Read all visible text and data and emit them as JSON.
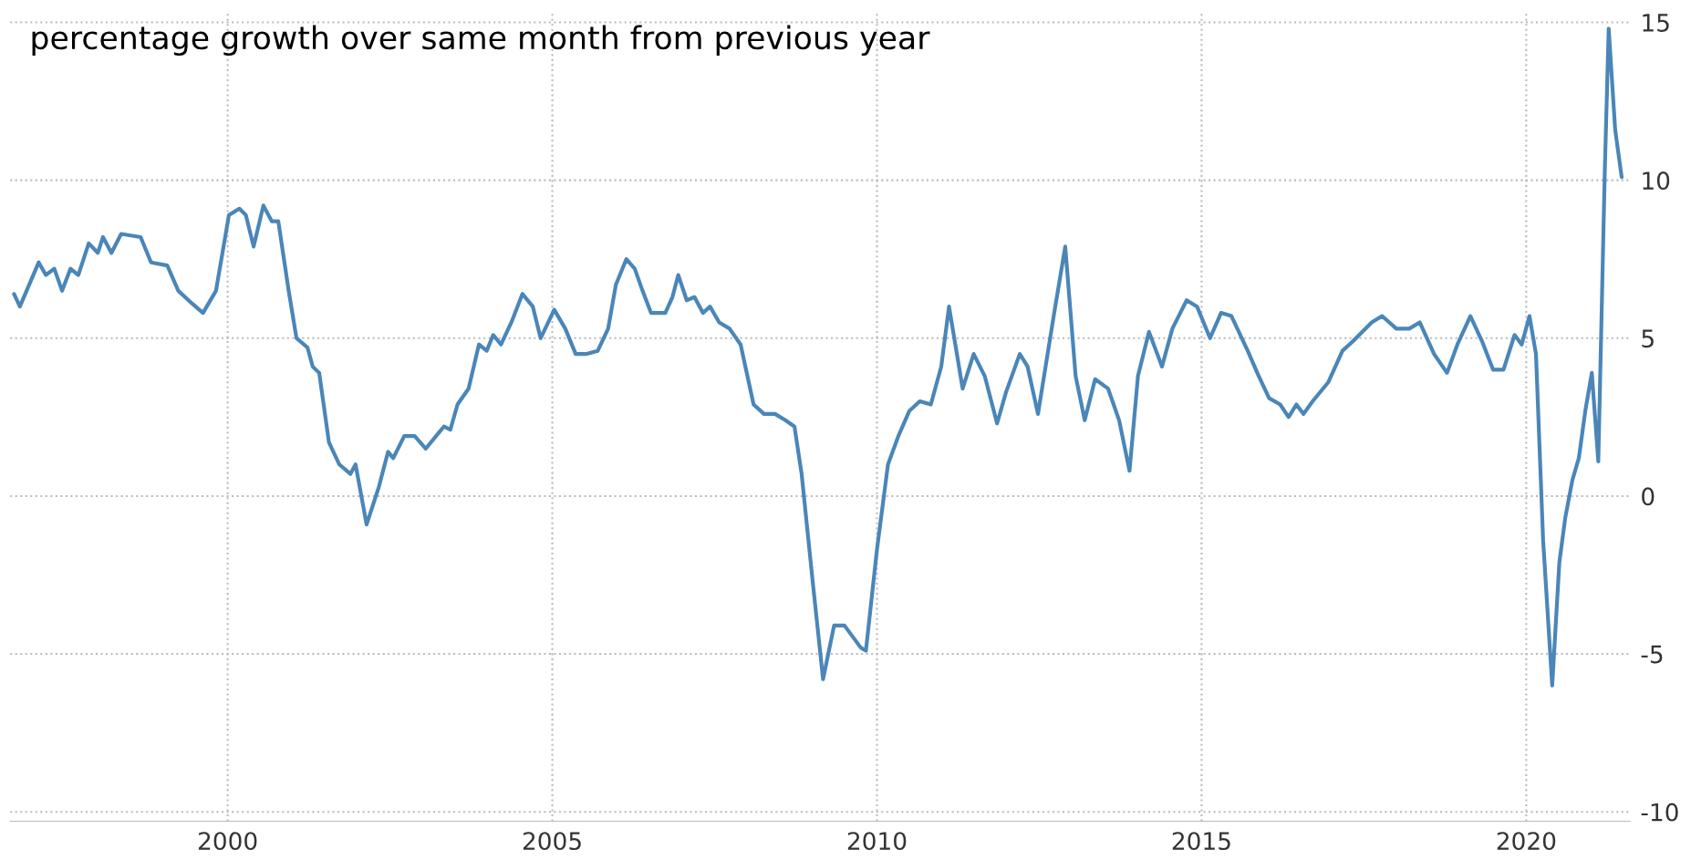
{
  "chart_data": {
    "type": "line",
    "annotations": [
      "percentage growth over same month from previous year"
    ],
    "x": [
      1996.71,
      1996.8,
      1997.09,
      1997.2,
      1997.33,
      1997.45,
      1997.58,
      1997.7,
      1997.86,
      1998.0,
      1998.08,
      1998.21,
      1998.36,
      1998.66,
      1998.82,
      1999.07,
      1999.24,
      1999.45,
      1999.62,
      1999.82,
      2000.02,
      2000.18,
      2000.28,
      2000.4,
      2000.55,
      2000.68,
      2000.78,
      2000.94,
      2001.06,
      2001.23,
      2001.31,
      2001.41,
      2001.56,
      2001.72,
      2001.89,
      2001.97,
      2002.14,
      2002.33,
      2002.47,
      2002.55,
      2002.72,
      2002.88,
      2003.05,
      2003.21,
      2003.33,
      2003.43,
      2003.54,
      2003.71,
      2003.87,
      2003.99,
      2004.09,
      2004.21,
      2004.37,
      2004.54,
      2004.7,
      2004.82,
      2005.03,
      2005.2,
      2005.36,
      2005.53,
      2005.7,
      2005.86,
      2005.98,
      2006.14,
      2006.27,
      2006.39,
      2006.52,
      2006.74,
      2006.85,
      2006.94,
      2007.07,
      2007.19,
      2007.32,
      2007.43,
      2007.57,
      2007.73,
      2007.9,
      2008.1,
      2008.26,
      2008.43,
      2008.59,
      2008.73,
      2008.84,
      2009.01,
      2009.17,
      2009.34,
      2009.5,
      2009.75,
      2009.83,
      2010.0,
      2010.17,
      2010.33,
      2010.5,
      2010.66,
      2010.83,
      2010.99,
      2011.11,
      2011.32,
      2011.49,
      2011.66,
      2011.85,
      2011.99,
      2012.2,
      2012.32,
      2012.48,
      2012.73,
      2012.9,
      2013.06,
      2013.2,
      2013.36,
      2013.56,
      2013.73,
      2013.89,
      2014.02,
      2014.19,
      2014.39,
      2014.55,
      2014.77,
      2014.93,
      2015.13,
      2015.3,
      2015.46,
      2015.71,
      2015.88,
      2016.04,
      2016.21,
      2016.34,
      2016.46,
      2016.57,
      2016.71,
      2016.95,
      2017.17,
      2017.33,
      2017.62,
      2017.78,
      2018.0,
      2018.2,
      2018.36,
      2018.58,
      2018.78,
      2018.94,
      2019.14,
      2019.32,
      2019.49,
      2019.65,
      2019.82,
      2019.93,
      2020.05,
      2020.15,
      2020.26,
      2020.4,
      2020.51,
      2020.6,
      2020.71,
      2020.81,
      2020.91,
      2021.01,
      2021.11,
      2021.21,
      2021.27,
      2021.37,
      2021.47
    ],
    "series": [
      {
        "color": "#4a86b8",
        "values": [
          6.4,
          6.0,
          7.4,
          7.0,
          7.2,
          6.5,
          7.2,
          7.0,
          8.0,
          7.7,
          8.2,
          7.7,
          8.3,
          8.2,
          7.4,
          7.3,
          6.5,
          6.1,
          5.8,
          6.5,
          8.9,
          9.1,
          8.9,
          7.9,
          9.2,
          8.7,
          8.7,
          6.5,
          5.0,
          4.7,
          4.1,
          3.9,
          1.7,
          1.0,
          0.7,
          1.0,
          -0.9,
          0.3,
          1.4,
          1.2,
          1.9,
          1.9,
          1.5,
          1.9,
          2.2,
          2.1,
          2.9,
          3.4,
          4.8,
          4.6,
          5.1,
          4.8,
          5.5,
          6.4,
          6.0,
          5.0,
          5.9,
          5.3,
          4.5,
          4.5,
          4.6,
          5.3,
          6.7,
          7.5,
          7.2,
          6.5,
          5.8,
          5.8,
          6.3,
          7.0,
          6.2,
          6.3,
          5.8,
          6.0,
          5.5,
          5.3,
          4.8,
          2.9,
          2.6,
          2.6,
          2.4,
          2.2,
          0.7,
          -2.7,
          -5.8,
          -4.1,
          -4.1,
          -4.8,
          -4.9,
          -1.7,
          1.0,
          1.9,
          2.7,
          3.0,
          2.9,
          4.1,
          6.0,
          3.4,
          4.5,
          3.8,
          2.3,
          3.3,
          4.5,
          4.1,
          2.6,
          5.8,
          7.9,
          3.8,
          2.4,
          3.7,
          3.4,
          2.4,
          0.8,
          3.8,
          5.2,
          4.1,
          5.3,
          6.2,
          6.0,
          5.0,
          5.8,
          5.7,
          4.6,
          3.8,
          3.1,
          2.9,
          2.5,
          2.9,
          2.6,
          3.0,
          3.6,
          4.6,
          4.9,
          5.5,
          5.7,
          5.3,
          5.3,
          5.5,
          4.5,
          3.9,
          4.8,
          5.7,
          4.9,
          4.0,
          4.0,
          5.1,
          4.8,
          5.7,
          4.5,
          -1.4,
          -6.0,
          -2.1,
          -0.7,
          0.5,
          1.2,
          2.7,
          3.9,
          1.1,
          10.3,
          14.8,
          11.6,
          10.1
        ]
      }
    ],
    "xlim": [
      1996.65,
      2021.6
    ],
    "xticks": [
      2000,
      2005,
      2010,
      2015,
      2020
    ],
    "ylim": [
      -10.3,
      15.3
    ],
    "yticks": [
      -10,
      -5,
      0,
      5,
      10,
      15
    ],
    "grid": true,
    "line_style": "solid",
    "marker": "none"
  }
}
